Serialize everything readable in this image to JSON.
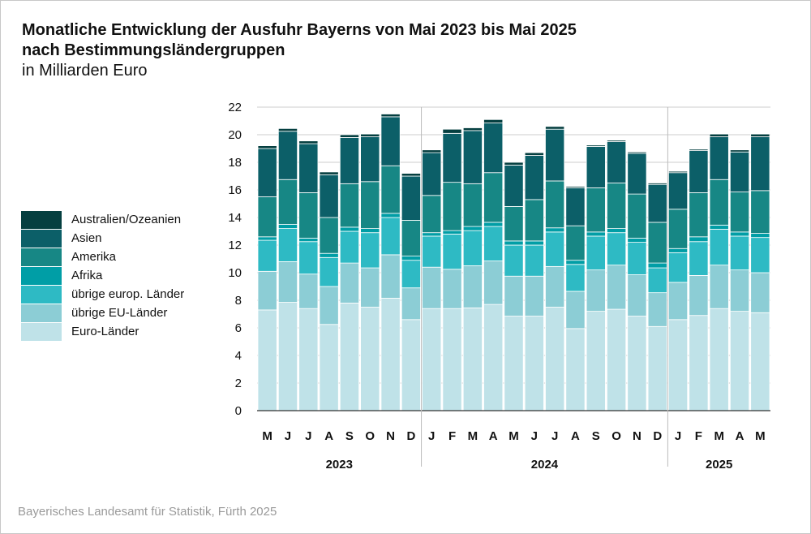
{
  "header": {
    "title_line1": "Monatliche Entwicklung der Ausfuhr Bayerns von Mai 2023 bis Mai 2025",
    "title_line2": "nach Bestimmungsländergruppen",
    "subtitle": "in Milliarden Euro"
  },
  "footer": {
    "source": "Bayerisches Landesamt für Statistik, Fürth 2025"
  },
  "colors": {
    "Euro-Länder": "#bfe2e8",
    "übrige EU-Länder": "#8ccdd5",
    "übrige europ. Länder": "#2ebac4",
    "Afrika": "#009ea6",
    "Amerika": "#178785",
    "Asien": "#0c5f68",
    "Australien/Ozeanien": "#053f40",
    "grid": "#cccccc"
  },
  "legend": [
    "Australien/Ozeanien",
    "Asien",
    "Amerika",
    "Afrika",
    "übrige europ. Länder",
    "übrige EU-Länder",
    "Euro-Länder"
  ],
  "chart_data": {
    "type": "bar",
    "stacked": true,
    "title": "Monatliche Entwicklung der Ausfuhr Bayerns von Mai 2023 bis Mai 2025 nach Bestimmungsländergruppen",
    "ylabel": "in Milliarden Euro",
    "ylim": [
      0,
      22
    ],
    "yticks": [
      0,
      2,
      4,
      6,
      8,
      10,
      12,
      14,
      16,
      18,
      20,
      22
    ],
    "grid": true,
    "legend_position": "left",
    "categories": [
      "M",
      "J",
      "J",
      "A",
      "S",
      "O",
      "N",
      "D",
      "J",
      "F",
      "M",
      "A",
      "M",
      "J",
      "J",
      "A",
      "S",
      "O",
      "N",
      "D",
      "J",
      "F",
      "M",
      "A",
      "M"
    ],
    "years": [
      {
        "label": "2023",
        "start": 0,
        "end": 7
      },
      {
        "label": "2024",
        "start": 8,
        "end": 19
      },
      {
        "label": "2025",
        "start": 20,
        "end": 24
      }
    ],
    "series": [
      {
        "name": "Euro-Länder",
        "values": [
          7.3,
          7.85,
          7.4,
          6.25,
          7.8,
          7.5,
          8.15,
          6.6,
          7.4,
          7.4,
          7.45,
          7.7,
          6.85,
          6.85,
          7.5,
          5.95,
          7.2,
          7.35,
          6.85,
          6.1,
          6.6,
          6.9,
          7.4,
          7.2,
          7.1
        ]
      },
      {
        "name": "übrige EU-Länder",
        "values": [
          2.8,
          2.95,
          2.5,
          2.75,
          2.9,
          2.85,
          3.15,
          2.3,
          3.0,
          2.85,
          3.05,
          3.15,
          2.9,
          2.9,
          2.95,
          2.7,
          3.0,
          3.2,
          3.0,
          2.45,
          2.7,
          2.9,
          3.15,
          3.0,
          2.9
        ]
      },
      {
        "name": "übrige europ. Länder",
        "values": [
          2.25,
          2.4,
          2.35,
          2.1,
          2.3,
          2.55,
          2.7,
          2.0,
          2.25,
          2.55,
          2.55,
          2.5,
          2.25,
          2.25,
          2.5,
          1.95,
          2.45,
          2.35,
          2.35,
          1.8,
          2.15,
          2.45,
          2.6,
          2.45,
          2.55
        ]
      },
      {
        "name": "Afrika",
        "values": [
          0.25,
          0.3,
          0.25,
          0.3,
          0.3,
          0.3,
          0.3,
          0.3,
          0.25,
          0.25,
          0.3,
          0.3,
          0.3,
          0.3,
          0.3,
          0.3,
          0.3,
          0.3,
          0.3,
          0.35,
          0.3,
          0.35,
          0.3,
          0.3,
          0.3
        ]
      },
      {
        "name": "Amerika",
        "values": [
          2.9,
          3.25,
          3.3,
          2.6,
          3.15,
          3.4,
          3.45,
          2.6,
          2.7,
          3.5,
          3.1,
          3.6,
          2.5,
          3.0,
          3.4,
          2.5,
          3.2,
          3.3,
          3.2,
          2.95,
          2.85,
          3.2,
          3.3,
          2.9,
          3.1
        ]
      },
      {
        "name": "Asien",
        "values": [
          3.5,
          3.5,
          3.55,
          3.1,
          3.35,
          3.25,
          3.55,
          3.2,
          3.1,
          3.55,
          3.85,
          3.6,
          3.0,
          3.2,
          3.75,
          2.75,
          3.0,
          3.0,
          2.95,
          2.75,
          2.65,
          3.05,
          3.1,
          2.9,
          3.9
        ]
      },
      {
        "name": "Australien/Ozeanien",
        "values": [
          0.2,
          0.2,
          0.2,
          0.2,
          0.2,
          0.2,
          0.2,
          0.2,
          0.2,
          0.3,
          0.2,
          0.25,
          0.2,
          0.2,
          0.2,
          0.1,
          0.1,
          0.1,
          0.1,
          0.1,
          0.1,
          0.1,
          0.2,
          0.15,
          0.2
        ]
      }
    ]
  }
}
